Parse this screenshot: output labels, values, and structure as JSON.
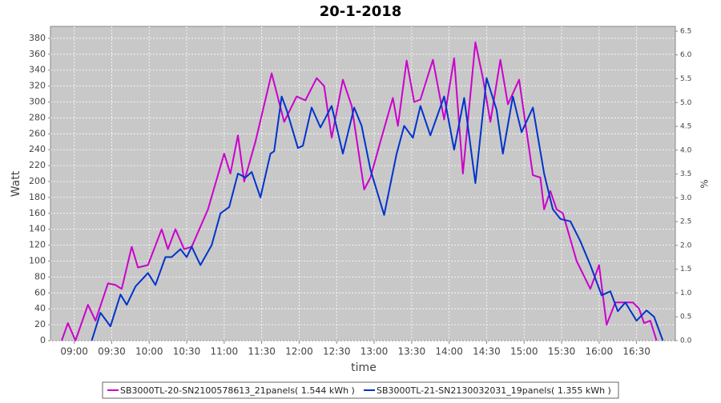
{
  "chart_data": {
    "type": "line",
    "title": "20-1-2018",
    "x_label": "time",
    "y_label": "Watt",
    "y2_label": "%",
    "xlim": [
      "08:41",
      "17:01"
    ],
    "xticks": [
      "09:00",
      "09:30",
      "10:00",
      "10:30",
      "11:00",
      "11:30",
      "12:00",
      "12:30",
      "13:00",
      "13:30",
      "14:00",
      "14:30",
      "15:00",
      "15:30",
      "16:00",
      "16:30"
    ],
    "ylim": [
      0,
      395
    ],
    "yticks": [
      0,
      20,
      40,
      60,
      80,
      100,
      120,
      140,
      160,
      180,
      200,
      220,
      240,
      260,
      280,
      300,
      320,
      340,
      360,
      380
    ],
    "y2lim": [
      0,
      6.6
    ],
    "y2ticks": [
      {
        "value": 0,
        "label": "0.0"
      },
      {
        "value": 0.5,
        "label": "0.5"
      },
      {
        "value": 1,
        "label": "1.0"
      },
      {
        "value": 1.5,
        "label": "1.5"
      },
      {
        "value": 2,
        "label": "2.0"
      },
      {
        "value": 2.5,
        "label": "2.5"
      },
      {
        "value": 3,
        "label": "3.0"
      },
      {
        "value": 3.5,
        "label": "3.5"
      },
      {
        "value": 4,
        "label": "4.0"
      },
      {
        "value": 4.5,
        "label": "4.5"
      },
      {
        "value": 5,
        "label": "5.0"
      },
      {
        "value": 5.5,
        "label": "5.5"
      },
      {
        "value": 6,
        "label": "6.0"
      },
      {
        "value": 6.5,
        "label": "6.5"
      }
    ],
    "grid": true,
    "legend": "bottom",
    "series": [
      {
        "name": "SB3000TL-20-SN2100578613_21panels( 1.544 kWh )",
        "color": "#cc00cc",
        "x": [
          "08:50",
          "08:55",
          "09:01",
          "09:11",
          "09:17",
          "09:27",
          "09:33",
          "09:38",
          "09:46",
          "09:51",
          "09:59",
          "10:10",
          "10:15",
          "10:21",
          "10:28",
          "10:34",
          "10:47",
          "11:00",
          "11:05",
          "11:11",
          "11:16",
          "11:25",
          "11:38",
          "11:48",
          "11:58",
          "12:05",
          "12:14",
          "12:20",
          "12:26",
          "12:35",
          "12:42",
          "12:52",
          "12:57",
          "13:05",
          "13:15",
          "13:19",
          "13:26",
          "13:32",
          "13:37",
          "13:47",
          "13:56",
          "14:04",
          "14:11",
          "14:21",
          "14:27",
          "14:33",
          "14:41",
          "14:47",
          "14:56",
          "15:07",
          "15:13",
          "15:16",
          "15:21",
          "15:26",
          "15:31",
          "15:42",
          "15:53",
          "16:00",
          "16:06",
          "16:13",
          "16:27",
          "16:32",
          "16:36",
          "16:41",
          "16:46"
        ],
        "values": [
          0,
          22,
          0,
          45,
          25,
          72,
          70,
          65,
          118,
          92,
          95,
          140,
          115,
          140,
          115,
          118,
          165,
          235,
          210,
          258,
          200,
          250,
          336,
          275,
          307,
          302,
          330,
          320,
          255,
          328,
          295,
          190,
          205,
          250,
          305,
          270,
          352,
          300,
          303,
          353,
          278,
          355,
          210,
          375,
          330,
          275,
          353,
          297,
          328,
          208,
          205,
          165,
          188,
          165,
          160,
          100,
          65,
          95,
          20,
          48,
          48,
          40,
          22,
          25,
          0
        ]
      },
      {
        "name": "SB3000TL-21-SN2130032031_19panels( 1.355 kWh )",
        "color": "#0033cc",
        "x": [
          "09:14",
          "09:21",
          "09:29",
          "09:37",
          "09:42",
          "09:49",
          "09:59",
          "10:05",
          "10:13",
          "10:18",
          "10:25",
          "10:30",
          "10:34",
          "10:41",
          "10:50",
          "10:57",
          "11:04",
          "11:11",
          "11:17",
          "11:22",
          "11:29",
          "11:37",
          "11:40",
          "11:46",
          "11:50",
          "11:59",
          "12:03",
          "12:10",
          "12:17",
          "12:26",
          "12:35",
          "12:44",
          "12:50",
          "12:57",
          "13:08",
          "13:18",
          "13:24",
          "13:31",
          "13:37",
          "13:45",
          "13:56",
          "14:04",
          "14:12",
          "14:21",
          "14:30",
          "14:38",
          "14:43",
          "14:51",
          "14:58",
          "15:07",
          "15:16",
          "15:23",
          "15:29",
          "15:37",
          "15:45",
          "15:53",
          "16:02",
          "16:09",
          "16:15",
          "16:21",
          "16:30",
          "16:38",
          "16:44",
          "16:51"
        ],
        "values": [
          0,
          35,
          18,
          58,
          45,
          68,
          85,
          70,
          105,
          105,
          115,
          105,
          118,
          95,
          120,
          160,
          168,
          210,
          205,
          212,
          180,
          235,
          238,
          307,
          290,
          242,
          245,
          293,
          268,
          295,
          235,
          293,
          270,
          215,
          158,
          235,
          270,
          255,
          295,
          258,
          307,
          240,
          305,
          198,
          330,
          290,
          235,
          307,
          262,
          293,
          210,
          165,
          153,
          150,
          125,
          95,
          57,
          62,
          37,
          48,
          25,
          38,
          30,
          0
        ]
      }
    ]
  }
}
